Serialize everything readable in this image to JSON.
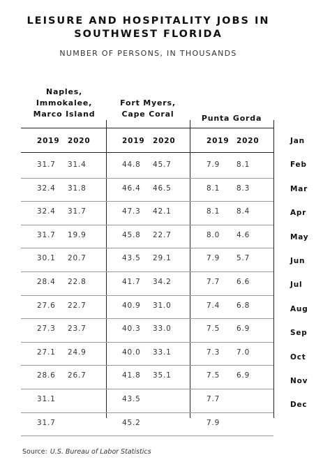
{
  "title_line1": "LEISURE AND HOSPITALITY JOBS IN",
  "title_line2": "SOUTHWEST FLORIDA",
  "subtitle": "NUMBER OF PERSONS, IN THOUSANDS",
  "groups": [
    {
      "lines": [
        "Naples,",
        "Immokalee,",
        "Marco Island"
      ]
    },
    {
      "lines": [
        "Fort Myers,",
        "Cape Coral"
      ]
    },
    {
      "lines": [
        "Punta Gorda"
      ]
    }
  ],
  "year_labels": [
    "2019",
    "2020"
  ],
  "months": [
    "Jan",
    "Feb",
    "Mar",
    "Apr",
    "May",
    "Jun",
    "Jul",
    "Aug",
    "Sep",
    "Oct",
    "Nov",
    "Dec"
  ],
  "source_label": "Source:",
  "source_text": "U.S. Bureau of Labor Statistics",
  "chart_data": {
    "type": "table",
    "title": "LEISURE AND HOSPITALITY JOBS IN SOUTHWEST FLORIDA",
    "subtitle": "NUMBER OF PERSONS, IN THOUSANDS",
    "columns": [
      "Naples, Immokalee, Marco Island 2019",
      "Naples, Immokalee, Marco Island 2020",
      "Fort Myers, Cape Coral 2019",
      "Fort Myers, Cape Coral 2020",
      "Punta Gorda 2019",
      "Punta Gorda 2020"
    ],
    "rows": [
      [
        "31.7",
        "31.4",
        "44.8",
        "45.7",
        "7.9",
        "8.1"
      ],
      [
        "32.4",
        "31.8",
        "46.4",
        "46.5",
        "8.1",
        "8.3"
      ],
      [
        "32.4",
        "31.7",
        "47.3",
        "42.1",
        "8.1",
        "8.4"
      ],
      [
        "31.7",
        "19.9",
        "45.8",
        "22.7",
        "8.0",
        "4.6"
      ],
      [
        "30.1",
        "20.7",
        "43.5",
        "29.1",
        "7.9",
        "5.7"
      ],
      [
        "28.4",
        "22.8",
        "41.7",
        "34.2",
        "7.7",
        "6.6"
      ],
      [
        "27.6",
        "22.7",
        "40.9",
        "31.0",
        "7.4",
        "6.8"
      ],
      [
        "27.3",
        "23.7",
        "40.3",
        "33.0",
        "7.5",
        "6.9"
      ],
      [
        "27.1",
        "24.9",
        "40.0",
        "33.1",
        "7.3",
        "7.0"
      ],
      [
        "28.6",
        "26.7",
        "41.8",
        "35.1",
        "7.5",
        "6.9"
      ],
      [
        "31.1",
        "",
        "43.5",
        "",
        "7.7",
        ""
      ],
      [
        "31.7",
        "",
        "45.2",
        "",
        "7.9",
        ""
      ]
    ]
  }
}
